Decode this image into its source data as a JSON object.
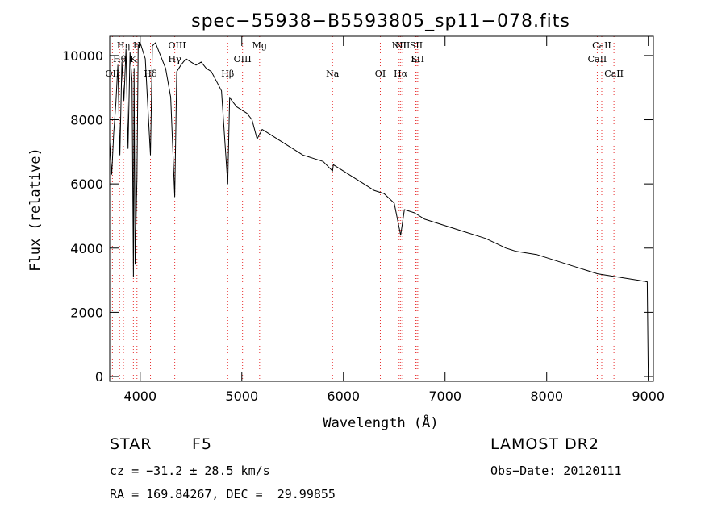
{
  "chart_data": {
    "type": "line",
    "title": "spec−55938−B5593805_sp11−078.fits",
    "xlabel": "Wavelength (Å)",
    "ylabel": "Flux (relative)",
    "xlim": [
      3700,
      9050
    ],
    "ylim": [
      -150,
      10600
    ],
    "x_ticks": [
      4000,
      5000,
      6000,
      7000,
      8000,
      9000
    ],
    "y_ticks": [
      0,
      2000,
      4000,
      6000,
      8000,
      10000
    ],
    "x_tick_labels": [
      "4000",
      "5000",
      "6000",
      "7000",
      "8000",
      "9000"
    ],
    "y_tick_labels": [
      "0",
      "2000",
      "4000",
      "6000",
      "8000",
      "10000"
    ],
    "grid": false,
    "line_color": "#000000",
    "marker_color": "#e83030",
    "series": [
      {
        "x": [
          3700,
          3720,
          3740,
          3760,
          3780,
          3800,
          3820,
          3840,
          3860,
          3880,
          3900,
          3920,
          3933,
          3940,
          3950,
          3968,
          3980,
          4000,
          4050,
          4101,
          4120,
          4150,
          4200,
          4250,
          4300,
          4340,
          4360,
          4400,
          4450,
          4500,
          4550,
          4600,
          4650,
          4700,
          4750,
          4800,
          4861,
          4880,
          4900,
          4950,
          5000,
          5050,
          5100,
          5150,
          5200,
          5250,
          5300,
          5400,
          5500,
          5600,
          5700,
          5800,
          5893,
          5900,
          6000,
          6100,
          6200,
          6300,
          6400,
          6500,
          6563,
          6600,
          6700,
          6800,
          6900,
          7000,
          7100,
          7200,
          7300,
          7400,
          7500,
          7600,
          7700,
          7800,
          7900,
          8000,
          8100,
          8200,
          8300,
          8400,
          8500,
          8600,
          8700,
          8800,
          8900,
          8990,
          9000
        ],
        "y": [
          7300,
          6300,
          7600,
          8500,
          9700,
          6900,
          9800,
          8600,
          10200,
          7100,
          10100,
          9200,
          3100,
          9600,
          3500,
          6200,
          10300,
          10400,
          9900,
          6900,
          10300,
          10400,
          10000,
          9600,
          8700,
          5600,
          9500,
          9700,
          9900,
          9800,
          9700,
          9800,
          9600,
          9500,
          9200,
          8900,
          6000,
          8700,
          8600,
          8400,
          8300,
          8200,
          8000,
          7400,
          7700,
          7600,
          7500,
          7300,
          7100,
          6900,
          6800,
          6700,
          6400,
          6600,
          6400,
          6200,
          6000,
          5800,
          5700,
          5400,
          4400,
          5200,
          5100,
          4900,
          4800,
          4700,
          4600,
          4500,
          4400,
          4300,
          4150,
          4000,
          3900,
          3850,
          3800,
          3700,
          3600,
          3500,
          3400,
          3300,
          3200,
          3150,
          3100,
          3050,
          3000,
          2950,
          -100
        ]
      }
    ],
    "line_markers": [
      {
        "label": "Hη",
        "wavelength": 3835
      },
      {
        "label": "Hθ",
        "wavelength": 3797
      },
      {
        "label": "OII",
        "wavelength": 3727
      },
      {
        "label": "H",
        "wavelength": 3968
      },
      {
        "label": "K",
        "wavelength": 3933
      },
      {
        "label": "Hδ",
        "wavelength": 4101
      },
      {
        "label": "OIII",
        "wavelength": 4363
      },
      {
        "label": "Hγ",
        "wavelength": 4340
      },
      {
        "label": "Hβ",
        "wavelength": 4861
      },
      {
        "label": "Mg",
        "wavelength": 5175
      },
      {
        "label": "OIII",
        "wavelength": 5007
      },
      {
        "label": "Na",
        "wavelength": 5893
      },
      {
        "label": "NII",
        "wavelength": 6583
      },
      {
        "label": "Li",
        "wavelength": 6708
      },
      {
        "label": "OI",
        "wavelength": 6363
      },
      {
        "label": "NII",
        "wavelength": 6548
      },
      {
        "label": "SII",
        "wavelength": 6731
      },
      {
        "label": "Hα",
        "wavelength": 6563
      },
      {
        "label": "SII",
        "wavelength": 6716
      },
      {
        "label": "CaII",
        "wavelength": 8498
      },
      {
        "label": "CaII",
        "wavelength": 8662
      },
      {
        "label": "CaII",
        "wavelength": 8542
      }
    ]
  },
  "footer": {
    "object_class": "STAR",
    "subclass": "F5",
    "survey": "LAMOST DR2",
    "cz": "cz = −31.2 ± 28.5 km/s",
    "obs_date": "Obs−Date: 20120111",
    "coords": "RA = 169.84267, DEC =  29.99855"
  }
}
